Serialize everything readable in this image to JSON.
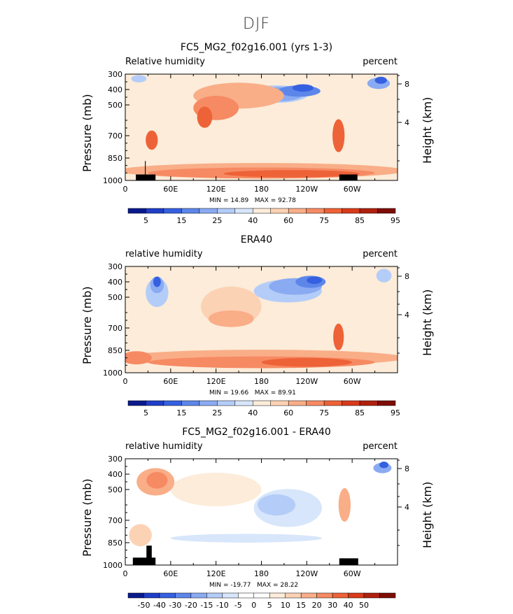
{
  "figure": {
    "title": "DJF"
  },
  "chart_data": [
    {
      "type": "heatmap",
      "title": "FC5_MG2_f02g16.001 (yrs 1-3)",
      "left_label": "Relative humidity",
      "units": "percent",
      "ylabel": "Pressure (mb)",
      "right_ylabel": "Height (km)",
      "y_ticks": [
        "300",
        "400",
        "500",
        "700",
        "850",
        "1000"
      ],
      "height_ticks": [
        "8",
        "4"
      ],
      "x_ticks": [
        "0",
        "60E",
        "120E",
        "180",
        "120W",
        "60W"
      ],
      "stats": {
        "min": "14.89",
        "max": "92.78"
      },
      "colorbar": {
        "colors": [
          "#0a1a8c",
          "#1f3ec8",
          "#3560e0",
          "#5d86ea",
          "#8aaaf2",
          "#b4cdf8",
          "#d8e6fb",
          "#fcecd9",
          "#fcd2b4",
          "#f9ae88",
          "#f68a63",
          "#ee6238",
          "#d83a1a",
          "#b0200e",
          "#7e0d05"
        ],
        "labels": [
          "5",
          "15",
          "25",
          "40",
          "60",
          "75",
          "85",
          "95"
        ]
      },
      "fields": {
        "background": "#fcecd9",
        "blobs": [
          {
            "lon": 200,
            "p": 430,
            "rx": 42,
            "ry": 95,
            "color": "#b4cdf8"
          },
          {
            "lon": 205,
            "p": 430,
            "rx": 30,
            "ry": 75,
            "color": "#8aaaf2"
          },
          {
            "lon": 230,
            "p": 410,
            "rx": 28,
            "ry": 55,
            "color": "#5d86ea"
          },
          {
            "lon": 235,
            "p": 390,
            "rx": 14,
            "ry": 30,
            "color": "#3560e0"
          },
          {
            "lon": 335,
            "p": 360,
            "rx": 15,
            "ry": 55,
            "color": "#8aaaf2"
          },
          {
            "lon": 338,
            "p": 340,
            "rx": 8,
            "ry": 28,
            "color": "#3560e0"
          },
          {
            "lon": 18,
            "p": 330,
            "rx": 10,
            "ry": 30,
            "color": "#b4cdf8"
          },
          {
            "lon": 150,
            "p": 440,
            "rx": 60,
            "ry": 150,
            "color": "#f9ae88"
          },
          {
            "lon": 120,
            "p": 520,
            "rx": 30,
            "ry": 140,
            "color": "#f68a63"
          },
          {
            "lon": 105,
            "p": 580,
            "rx": 10,
            "ry": 120,
            "color": "#ee6238"
          },
          {
            "lon": 282,
            "p": 700,
            "rx": 8,
            "ry": 200,
            "color": "#ee6238"
          },
          {
            "lon": 35,
            "p": 730,
            "rx": 8,
            "ry": 110,
            "color": "#ee6238"
          },
          {
            "lon": 180,
            "p": 935,
            "rx": 190,
            "ry": 85,
            "color": "#f9ae88"
          },
          {
            "lon": 180,
            "p": 950,
            "rx": 150,
            "ry": 55,
            "color": "#f68a63"
          },
          {
            "lon": 220,
            "p": 955,
            "rx": 90,
            "ry": 30,
            "color": "#ee6238"
          }
        ],
        "topography": [
          [
            14,
            960
          ],
          [
            26,
            960
          ],
          [
            26,
            870
          ],
          [
            27,
            870
          ],
          [
            27,
            960
          ],
          [
            40,
            960
          ],
          [
            40,
            1000
          ],
          [
            14,
            1000
          ]
        ],
        "topography2": [
          [
            283,
            960
          ],
          [
            307,
            960
          ],
          [
            307,
            1000
          ],
          [
            283,
            1000
          ]
        ]
      }
    },
    {
      "type": "heatmap",
      "title": "ERA40",
      "left_label": "relative humidity",
      "units": "percent",
      "ylabel": "Pressure (mb)",
      "right_ylabel": "Height (km)",
      "y_ticks": [
        "300",
        "400",
        "500",
        "700",
        "850",
        "1000"
      ],
      "height_ticks": [
        "8",
        "4"
      ],
      "x_ticks": [
        "0",
        "60E",
        "120E",
        "180",
        "120W",
        "60W"
      ],
      "stats": {
        "min": "19.66",
        "max": "89.91"
      },
      "colorbar": {
        "colors": [
          "#0a1a8c",
          "#1f3ec8",
          "#3560e0",
          "#5d86ea",
          "#8aaaf2",
          "#b4cdf8",
          "#d8e6fb",
          "#fcecd9",
          "#fcd2b4",
          "#f9ae88",
          "#f68a63",
          "#ee6238",
          "#d83a1a",
          "#b0200e",
          "#7e0d05"
        ],
        "labels": [
          "5",
          "15",
          "25",
          "40",
          "60",
          "75",
          "85",
          "95"
        ]
      },
      "fields": {
        "background": "#fcecd9",
        "blobs": [
          {
            "lon": 42,
            "p": 470,
            "rx": 15,
            "ry": 170,
            "color": "#b4cdf8"
          },
          {
            "lon": 42,
            "p": 420,
            "rx": 9,
            "ry": 90,
            "color": "#8aaaf2"
          },
          {
            "lon": 42,
            "p": 400,
            "rx": 5,
            "ry": 50,
            "color": "#3560e0"
          },
          {
            "lon": 215,
            "p": 460,
            "rx": 45,
            "ry": 130,
            "color": "#b4cdf8"
          },
          {
            "lon": 225,
            "p": 430,
            "rx": 35,
            "ry": 90,
            "color": "#8aaaf2"
          },
          {
            "lon": 245,
            "p": 400,
            "rx": 20,
            "ry": 60,
            "color": "#5d86ea"
          },
          {
            "lon": 250,
            "p": 390,
            "rx": 10,
            "ry": 30,
            "color": "#3560e0"
          },
          {
            "lon": 342,
            "p": 360,
            "rx": 10,
            "ry": 70,
            "color": "#b4cdf8"
          },
          {
            "lon": 140,
            "p": 560,
            "rx": 40,
            "ry": 240,
            "color": "#fcd2b4"
          },
          {
            "lon": 140,
            "p": 640,
            "rx": 30,
            "ry": 90,
            "color": "#f9ae88"
          },
          {
            "lon": 180,
            "p": 900,
            "rx": 190,
            "ry": 90,
            "color": "#f9ae88"
          },
          {
            "lon": 180,
            "p": 930,
            "rx": 150,
            "ry": 60,
            "color": "#f68a63"
          },
          {
            "lon": 240,
            "p": 930,
            "rx": 60,
            "ry": 40,
            "color": "#ee6238"
          },
          {
            "lon": 282,
            "p": 760,
            "rx": 7,
            "ry": 160,
            "color": "#ee6238"
          },
          {
            "lon": 15,
            "p": 900,
            "rx": 20,
            "ry": 70,
            "color": "#f68a63"
          }
        ],
        "topography": [],
        "topography2": []
      }
    },
    {
      "type": "heatmap",
      "title": "FC5_MG2_f02g16.001 - ERA40",
      "left_label": "relative humidity",
      "units": "percent",
      "ylabel": "Pressure (mb)",
      "right_ylabel": "Height (km)",
      "y_ticks": [
        "300",
        "400",
        "500",
        "700",
        "850",
        "1000"
      ],
      "height_ticks": [
        "8",
        "4"
      ],
      "x_ticks": [
        "0",
        "60E",
        "120E",
        "180",
        "120W",
        "60W"
      ],
      "stats": {
        "min": "-19.77",
        "max": "28.22"
      },
      "colorbar": {
        "colors": [
          "#0a1a8c",
          "#1f3ec8",
          "#3560e0",
          "#5d86ea",
          "#8aaaf2",
          "#b4cdf8",
          "#d8e6fb",
          "#ffffff",
          "#ffffff",
          "#fcecd9",
          "#fcd2b4",
          "#f9ae88",
          "#f68a63",
          "#ee6238",
          "#d83a1a",
          "#b0200e",
          "#7e0d05"
        ],
        "labels": [
          "-50",
          "-40",
          "-30",
          "-20",
          "-15",
          "-10",
          "-5",
          "0",
          "5",
          "10",
          "15",
          "20",
          "30",
          "40",
          "50"
        ]
      },
      "fields": {
        "background": "#ffffff",
        "blobs": [
          {
            "lon": 120,
            "p": 500,
            "rx": 60,
            "ry": 200,
            "color": "#fcecd9"
          },
          {
            "lon": 40,
            "p": 450,
            "rx": 25,
            "ry": 160,
            "color": "#f9ae88"
          },
          {
            "lon": 42,
            "p": 440,
            "rx": 14,
            "ry": 90,
            "color": "#f68a63"
          },
          {
            "lon": 215,
            "p": 620,
            "rx": 45,
            "ry": 230,
            "color": "#d8e6fb"
          },
          {
            "lon": 200,
            "p": 600,
            "rx": 25,
            "ry": 120,
            "color": "#b4cdf8"
          },
          {
            "lon": 160,
            "p": 820,
            "rx": 100,
            "ry": 40,
            "color": "#d8e6fb"
          },
          {
            "lon": 290,
            "p": 600,
            "rx": 8,
            "ry": 200,
            "color": "#f9ae88"
          },
          {
            "lon": 340,
            "p": 360,
            "rx": 12,
            "ry": 50,
            "color": "#8aaaf2"
          },
          {
            "lon": 342,
            "p": 340,
            "rx": 6,
            "ry": 25,
            "color": "#3560e0"
          },
          {
            "lon": 20,
            "p": 800,
            "rx": 15,
            "ry": 130,
            "color": "#fcd2b4"
          }
        ],
        "topography": [
          [
            10,
            950
          ],
          [
            28,
            950
          ],
          [
            28,
            870
          ],
          [
            35,
            870
          ],
          [
            35,
            950
          ],
          [
            40,
            950
          ],
          [
            40,
            1000
          ],
          [
            10,
            1000
          ]
        ],
        "topography2": [
          [
            283,
            955
          ],
          [
            308,
            955
          ],
          [
            308,
            1000
          ],
          [
            283,
            1000
          ]
        ]
      }
    }
  ]
}
